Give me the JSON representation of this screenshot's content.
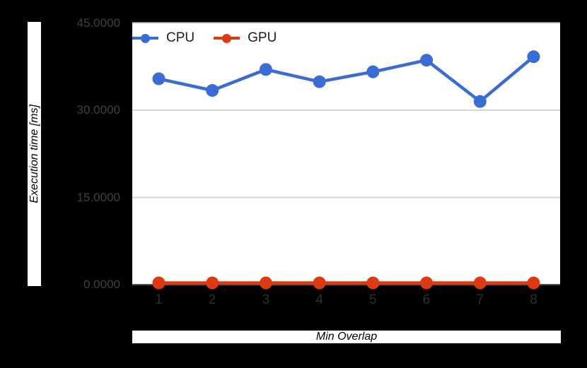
{
  "page": {
    "background_color": "#000000"
  },
  "chart_data": {
    "type": "line",
    "title": "",
    "xlabel": "Min Overlap",
    "ylabel": "Execution time [ms]",
    "categories": [
      "1",
      "2",
      "3",
      "4",
      "5",
      "6",
      "7",
      "8"
    ],
    "series": [
      {
        "name": "CPU",
        "color": "#3B6CD4",
        "values": [
          35.4,
          33.4,
          37.0,
          34.9,
          36.6,
          38.6,
          31.5,
          39.2
        ]
      },
      {
        "name": "GPU",
        "color": "#DC3A12",
        "values": [
          0.3,
          0.3,
          0.3,
          0.3,
          0.3,
          0.3,
          0.3,
          0.3
        ]
      }
    ],
    "ylim": [
      0,
      45
    ],
    "yticks": [
      {
        "label": "0.0000",
        "value": 0
      },
      {
        "label": "15.0000",
        "value": 15
      },
      {
        "label": "30.0000",
        "value": 30
      },
      {
        "label": "45.0000",
        "value": 45
      }
    ],
    "grid": true,
    "legend_position": "top-left",
    "plot_background": "#ffffff",
    "gridline_color": "#d4d4d4",
    "baseline_color": "#4d4d4d",
    "ytick_text_color": "#404040",
    "xtick_text_color": "#2f2f2f"
  }
}
